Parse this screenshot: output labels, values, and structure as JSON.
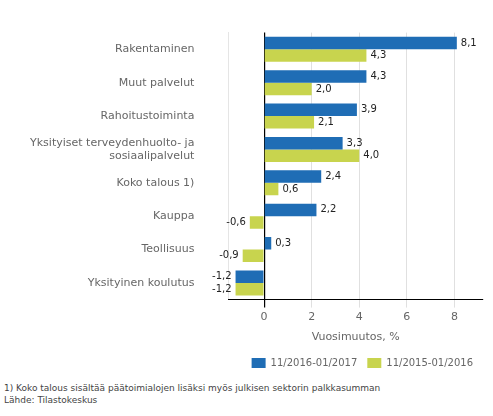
{
  "chart_data": {
    "type": "bar",
    "orientation": "horizontal",
    "categories": [
      "Rakentaminen",
      "Muut palvelut",
      "Rahoitustoiminta",
      "Yksityiset terveydenhuolto- ja\nsosiaalipalvelut",
      "Koko talous 1)",
      "Kauppa",
      "Teollisuus",
      "Yksityinen koulutus"
    ],
    "series": [
      {
        "name": "11/2016-01/2017",
        "color": "#1F6DB5",
        "values": [
          8.1,
          4.3,
          3.9,
          3.3,
          2.4,
          2.2,
          0.3,
          -1.2
        ],
        "value_labels": [
          "8,1",
          "4,3",
          "3,9",
          "3,3",
          "2,4",
          "2,2",
          "0,3",
          "-1,2"
        ]
      },
      {
        "name": "11/2015-01/2016",
        "color": "#C8D44E",
        "values": [
          4.3,
          2.0,
          2.1,
          4.0,
          0.6,
          -0.6,
          -0.9,
          -1.2
        ],
        "value_labels": [
          "4,3",
          "2,0",
          "2,1",
          "4,0",
          "0,6",
          "-0,6",
          "-0,9",
          "-1,2"
        ]
      }
    ],
    "xlabel": "Vuosimuutos, %",
    "xlim": [
      -1.5,
      9.2
    ],
    "xticks": [
      0,
      2,
      4,
      6,
      8
    ],
    "grid": true,
    "legend": "lower right",
    "data_labels": true,
    "annotations": [
      "1) Koko talous sisältää päätoimialojen lisäksi myös julkisen sektorin palkkasumman",
      "Lähde: Tilastokeskus"
    ]
  }
}
